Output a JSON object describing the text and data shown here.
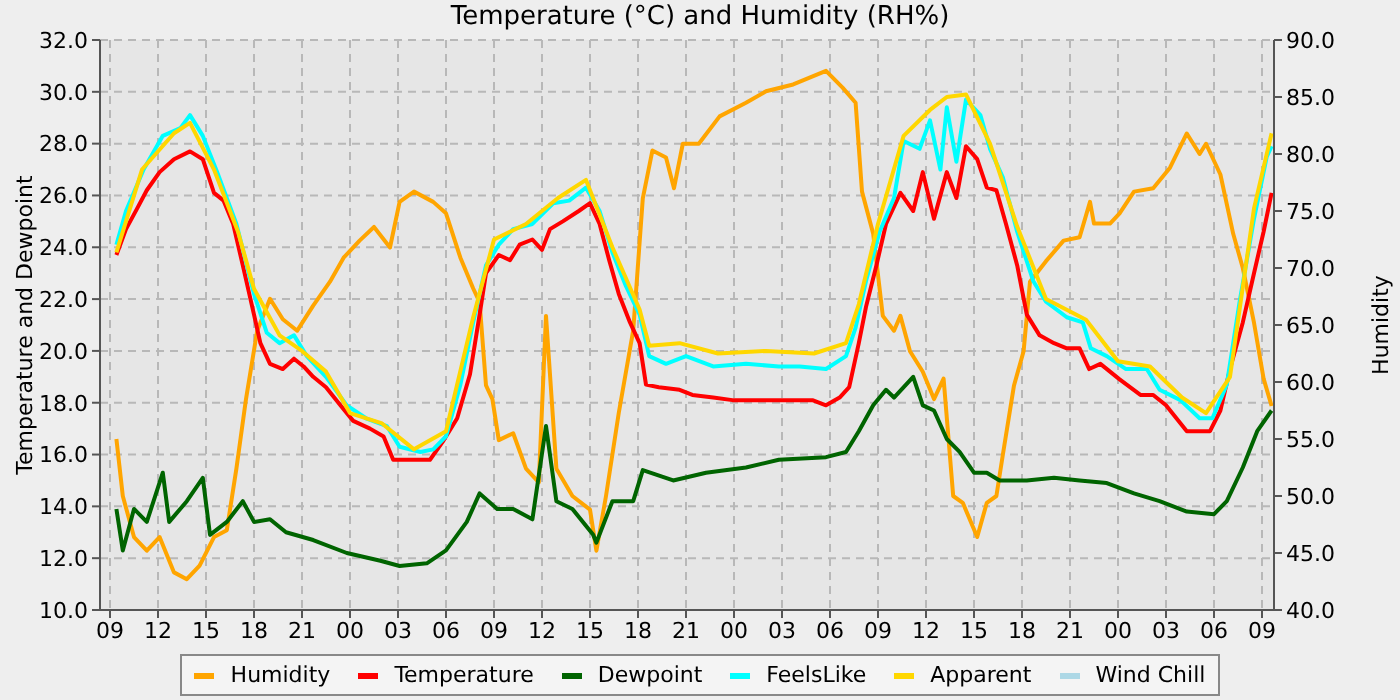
{
  "chart_data": {
    "type": "line",
    "title": "Temperature (°C) and Humidity (RH%)",
    "ylabel": "Temperature and Dewpoint",
    "y2label": "Humidity",
    "xlim": [
      8.375,
      81.75
    ],
    "xticks": [
      {
        "value": 9,
        "label": "09"
      },
      {
        "value": 12,
        "label": "12"
      },
      {
        "value": 15,
        "label": "15"
      },
      {
        "value": 18,
        "label": "18"
      },
      {
        "value": 21,
        "label": "21"
      },
      {
        "value": 24,
        "label": "00"
      },
      {
        "value": 27,
        "label": "03"
      },
      {
        "value": 30,
        "label": "06"
      },
      {
        "value": 33,
        "label": "09"
      },
      {
        "value": 36,
        "label": "12"
      },
      {
        "value": 39,
        "label": "15"
      },
      {
        "value": 42,
        "label": "18"
      },
      {
        "value": 45,
        "label": "21"
      },
      {
        "value": 48,
        "label": "00"
      },
      {
        "value": 51,
        "label": "03"
      },
      {
        "value": 54,
        "label": "06"
      },
      {
        "value": 57,
        "label": "09"
      },
      {
        "value": 60,
        "label": "12"
      },
      {
        "value": 63,
        "label": "15"
      },
      {
        "value": 66,
        "label": "18"
      },
      {
        "value": 69,
        "label": "21"
      },
      {
        "value": 72,
        "label": "00"
      },
      {
        "value": 75,
        "label": "03"
      },
      {
        "value": 78,
        "label": "06"
      },
      {
        "value": 81,
        "label": "09"
      }
    ],
    "ylim": [
      10,
      32
    ],
    "yticks": [
      {
        "value": 10,
        "label": "10.0"
      },
      {
        "value": 12,
        "label": "12.0"
      },
      {
        "value": 14,
        "label": "14.0"
      },
      {
        "value": 16,
        "label": "16.0"
      },
      {
        "value": 18,
        "label": "18.0"
      },
      {
        "value": 20,
        "label": "20.0"
      },
      {
        "value": 22,
        "label": "22.0"
      },
      {
        "value": 24,
        "label": "24.0"
      },
      {
        "value": 26,
        "label": "26.0"
      },
      {
        "value": 28,
        "label": "28.0"
      },
      {
        "value": 30,
        "label": "30.0"
      },
      {
        "value": 32,
        "label": "32.0"
      }
    ],
    "y2lim": [
      40,
      90
    ],
    "y2ticks": [
      {
        "value": 40,
        "label": "40.0"
      },
      {
        "value": 45,
        "label": "45.0"
      },
      {
        "value": 50,
        "label": "50.0"
      },
      {
        "value": 55,
        "label": "55.0"
      },
      {
        "value": 60,
        "label": "60.0"
      },
      {
        "value": 65,
        "label": "65.0"
      },
      {
        "value": 70,
        "label": "70.0"
      },
      {
        "value": 75,
        "label": "75.0"
      },
      {
        "value": 80,
        "label": "80.0"
      },
      {
        "value": 85,
        "label": "85.0"
      },
      {
        "value": 90,
        "label": "90.0"
      }
    ],
    "grid": true,
    "legend": "bottom",
    "series": [
      {
        "name": "Humidity",
        "color": "#ffa500",
        "axis": "y2",
        "x": [
          9.4,
          9.8,
          10.5,
          11.3,
          12.1,
          13,
          13.8,
          14.6,
          15.5,
          16.3,
          16.9,
          17.5,
          18.2,
          19,
          19.8,
          20.7,
          21.7,
          22.75,
          23.6,
          24.6,
          25.5,
          26.5,
          27.1,
          28,
          29.2,
          30,
          30.9,
          31.7,
          32.1,
          32.5,
          32.9,
          33.3,
          34.2,
          35,
          35.8,
          36.25,
          36.9,
          37.9,
          39,
          39.4,
          40,
          40.8,
          41.7,
          42.3,
          42.9,
          43.75,
          44.25,
          44.8,
          45.8,
          47.1,
          48.75,
          50,
          51.7,
          53.75,
          54.8,
          55.6,
          56,
          56.7,
          57.3,
          58,
          58.4,
          59,
          59.8,
          60.5,
          61.1,
          61.7,
          62.3,
          63.2,
          63.8,
          64.4,
          64.8,
          65.5,
          66.1,
          66.5,
          67.5,
          68.6,
          69.6,
          70.25,
          70.5,
          71.5,
          72.1,
          73,
          74.2,
          75.25,
          76.3,
          77.1,
          77.5,
          78.4,
          79.2,
          79.8,
          80.5,
          81.1,
          81.6
        ],
        "values": [
          55,
          50,
          46.4,
          45.2,
          46.4,
          43.3,
          42.7,
          43.9,
          46.4,
          47,
          52.4,
          58.5,
          64.5,
          67.3,
          65.5,
          64.5,
          66.7,
          68.8,
          70.9,
          72.4,
          73.6,
          71.8,
          75.8,
          76.7,
          75.8,
          74.8,
          70.9,
          68.2,
          67,
          59.7,
          58.5,
          54.9,
          55.5,
          52.4,
          51.2,
          65.8,
          52.4,
          50,
          48.8,
          45.2,
          50,
          57.3,
          64.5,
          76.1,
          80.3,
          79.7,
          77,
          80.9,
          80.9,
          83.3,
          84.5,
          85.5,
          86.1,
          87.3,
          85.8,
          84.5,
          76.7,
          73,
          65.8,
          64.5,
          65.8,
          62.7,
          60.9,
          58.5,
          60.3,
          50,
          49.4,
          46.4,
          49.4,
          50,
          53.6,
          59.7,
          62.7,
          68.8,
          70.6,
          72.4,
          72.7,
          75.8,
          73.9,
          73.9,
          74.8,
          76.7,
          77,
          78.8,
          81.8,
          80,
          80.9,
          78.2,
          73,
          70,
          65.2,
          60.3,
          57.9
        ]
      },
      {
        "name": "Temperature",
        "color": "#ff0000",
        "x": [
          9.4,
          10,
          10.7,
          11.3,
          12.1,
          13,
          14,
          14.8,
          15.5,
          16.1,
          16.7,
          17.3,
          18,
          18.4,
          19,
          19.8,
          20.5,
          21.1,
          21.7,
          22.5,
          23.4,
          24.2,
          25.25,
          26.1,
          26.7,
          28,
          29,
          29.8,
          30.7,
          31.5,
          32.1,
          32.5,
          33.3,
          34,
          34.6,
          35.4,
          36,
          36.5,
          37.3,
          38.3,
          39,
          39.6,
          40.2,
          40.8,
          41.5,
          42.1,
          42.5,
          43.3,
          44.6,
          45.4,
          46.7,
          47.9,
          49.6,
          51.25,
          52.9,
          53.75,
          54.6,
          55.2,
          55.8,
          56.25,
          56.9,
          57.5,
          58.4,
          59.2,
          59.8,
          60.5,
          61.3,
          61.9,
          62.5,
          63.2,
          63.8,
          64.4,
          65,
          65.7,
          66.3,
          67.1,
          68,
          68.8,
          69.6,
          70.2,
          70.9,
          72.1,
          73.4,
          74.2,
          75,
          76.3,
          77.1,
          77.75,
          78.4,
          79,
          79.8,
          80.5,
          81.1,
          81.6
        ],
        "values": [
          23.7,
          24.7,
          25.5,
          26.2,
          26.9,
          27.4,
          27.7,
          27.4,
          26.1,
          25.8,
          24.9,
          23.3,
          21.4,
          20.3,
          19.5,
          19.3,
          19.7,
          19.4,
          19,
          18.6,
          17.9,
          17.3,
          17,
          16.7,
          15.8,
          15.8,
          15.8,
          16.5,
          17.4,
          19.1,
          21.4,
          23,
          23.7,
          23.5,
          24.1,
          24.3,
          23.9,
          24.7,
          25,
          25.4,
          25.7,
          24.9,
          23.5,
          22.2,
          21.1,
          20.3,
          18.7,
          18.6,
          18.5,
          18.3,
          18.2,
          18.1,
          18.1,
          18.1,
          18.1,
          17.9,
          18.2,
          18.6,
          20.3,
          21.7,
          23.3,
          24.9,
          26.1,
          25.4,
          26.9,
          25.1,
          26.9,
          25.9,
          27.9,
          27.4,
          26.3,
          26.2,
          24.9,
          23.3,
          21.4,
          20.6,
          20.3,
          20.1,
          20.1,
          19.3,
          19.5,
          18.9,
          18.3,
          18.3,
          17.9,
          16.9,
          16.9,
          16.9,
          17.7,
          19.3,
          21.1,
          23,
          24.6,
          26.1
        ]
      },
      {
        "name": "Dewpoint",
        "color": "#006400",
        "x": [
          9.4,
          9.8,
          10.5,
          11.3,
          12.3,
          12.7,
          13.8,
          14.8,
          15.25,
          16.3,
          17.3,
          18,
          19,
          20,
          21.7,
          23.8,
          25.9,
          27.1,
          28.8,
          30,
          31.3,
          32.1,
          33.2,
          34.2,
          35.4,
          36.25,
          36.9,
          37.9,
          39.2,
          39.4,
          40.4,
          41.7,
          42.3,
          44.2,
          46.25,
          48.75,
          50.8,
          53.75,
          55,
          55.8,
          56.7,
          57.5,
          58,
          59.2,
          59.8,
          60.5,
          61.3,
          62.1,
          63,
          63.8,
          64.6,
          66.3,
          68,
          69.6,
          71.3,
          73,
          74.6,
          76.3,
          78,
          78.8,
          79.8,
          80.7,
          81.6
        ],
        "values": [
          13.9,
          12.3,
          13.9,
          13.4,
          15.3,
          13.4,
          14.2,
          15.1,
          12.9,
          13.4,
          14.2,
          13.4,
          13.5,
          13,
          12.7,
          12.2,
          11.9,
          11.7,
          11.8,
          12.3,
          13.4,
          14.5,
          13.9,
          13.9,
          13.5,
          17.1,
          14.2,
          13.9,
          12.9,
          12.6,
          14.2,
          14.2,
          15.4,
          15,
          15.3,
          15.5,
          15.8,
          15.9,
          16.1,
          16.9,
          17.9,
          18.5,
          18.2,
          19,
          17.9,
          17.7,
          16.6,
          16.1,
          15.3,
          15.3,
          15,
          15,
          15.1,
          15,
          14.9,
          14.5,
          14.2,
          13.8,
          13.7,
          14.2,
          15.5,
          16.9,
          17.7
        ]
      },
      {
        "name": "FeelsLike",
        "color": "#00ffff",
        "x": [
          9.4,
          10,
          11.1,
          12.3,
          13.4,
          14,
          14.8,
          15.7,
          16.9,
          18,
          18.8,
          19.6,
          20.5,
          21.3,
          22.5,
          23.8,
          25,
          26.3,
          27.1,
          28.4,
          29.2,
          30,
          30.9,
          31.7,
          32.5,
          33.3,
          34.2,
          35.4,
          36.7,
          37.7,
          38.75,
          39.6,
          40.4,
          41.25,
          42.1,
          42.7,
          43.75,
          45,
          46.7,
          48.75,
          50.8,
          52.1,
          53.75,
          55,
          55.6,
          56.25,
          57.1,
          58,
          58.6,
          59.6,
          60.25,
          60.9,
          61.3,
          61.9,
          62.5,
          63.4,
          64,
          64.8,
          65.7,
          66.7,
          67.5,
          68.8,
          69.8,
          70.3,
          71.3,
          72.5,
          73.8,
          74.6,
          75.9,
          77.1,
          77.9,
          78.8,
          79.6,
          80.5,
          81.3,
          81.6
        ],
        "values": [
          24.1,
          25.4,
          27,
          28.3,
          28.6,
          29.1,
          28.3,
          26.9,
          24.9,
          22.2,
          20.7,
          20.3,
          20.6,
          19.8,
          19,
          17.9,
          17.4,
          17.1,
          16.3,
          16.1,
          16.2,
          16.7,
          18.7,
          21.1,
          23.3,
          24.1,
          24.7,
          24.9,
          25.7,
          25.8,
          26.3,
          25.4,
          23.8,
          22.5,
          21.4,
          19.8,
          19.5,
          19.8,
          19.4,
          19.5,
          19.4,
          19.4,
          19.3,
          19.8,
          20.9,
          22.7,
          24.6,
          25.9,
          28.1,
          27.8,
          28.9,
          27,
          29.4,
          27.3,
          29.7,
          29.1,
          27.8,
          26.7,
          24.6,
          22.7,
          21.9,
          21.3,
          21.1,
          20.1,
          19.8,
          19.3,
          19.3,
          18.5,
          18.1,
          17.4,
          17.4,
          18.7,
          21.9,
          25.1,
          27.5,
          27.9
        ]
      },
      {
        "name": "Apparent",
        "color": "#ffd700",
        "x": [
          9.4,
          11,
          13,
          14,
          15.5,
          17,
          18,
          19.6,
          21,
          22.5,
          24,
          26,
          28,
          30,
          31.7,
          33,
          35,
          37,
          38.75,
          40.4,
          42.1,
          42.7,
          44.6,
          47,
          50,
          53,
          55,
          55.8,
          57,
          58.6,
          60.25,
          61.3,
          62.5,
          64,
          65.7,
          67.5,
          70,
          72,
          74,
          76,
          77.5,
          79,
          80.5,
          81.6
        ],
        "values": [
          23.8,
          27,
          28.4,
          28.8,
          27,
          24.6,
          22.4,
          20.6,
          20,
          19.2,
          17.6,
          17.2,
          16.2,
          16.9,
          21.3,
          24.3,
          24.9,
          25.9,
          26.6,
          24,
          21.6,
          20.2,
          20.3,
          19.9,
          20,
          19.9,
          20.3,
          21.8,
          24.9,
          28.3,
          29.3,
          29.8,
          29.9,
          28,
          24.8,
          22,
          21.2,
          19.6,
          19.4,
          18.2,
          17.6,
          19,
          25.5,
          28.4
        ]
      },
      {
        "name": "Wind Chill",
        "color": "#add8e6"
      }
    ]
  }
}
